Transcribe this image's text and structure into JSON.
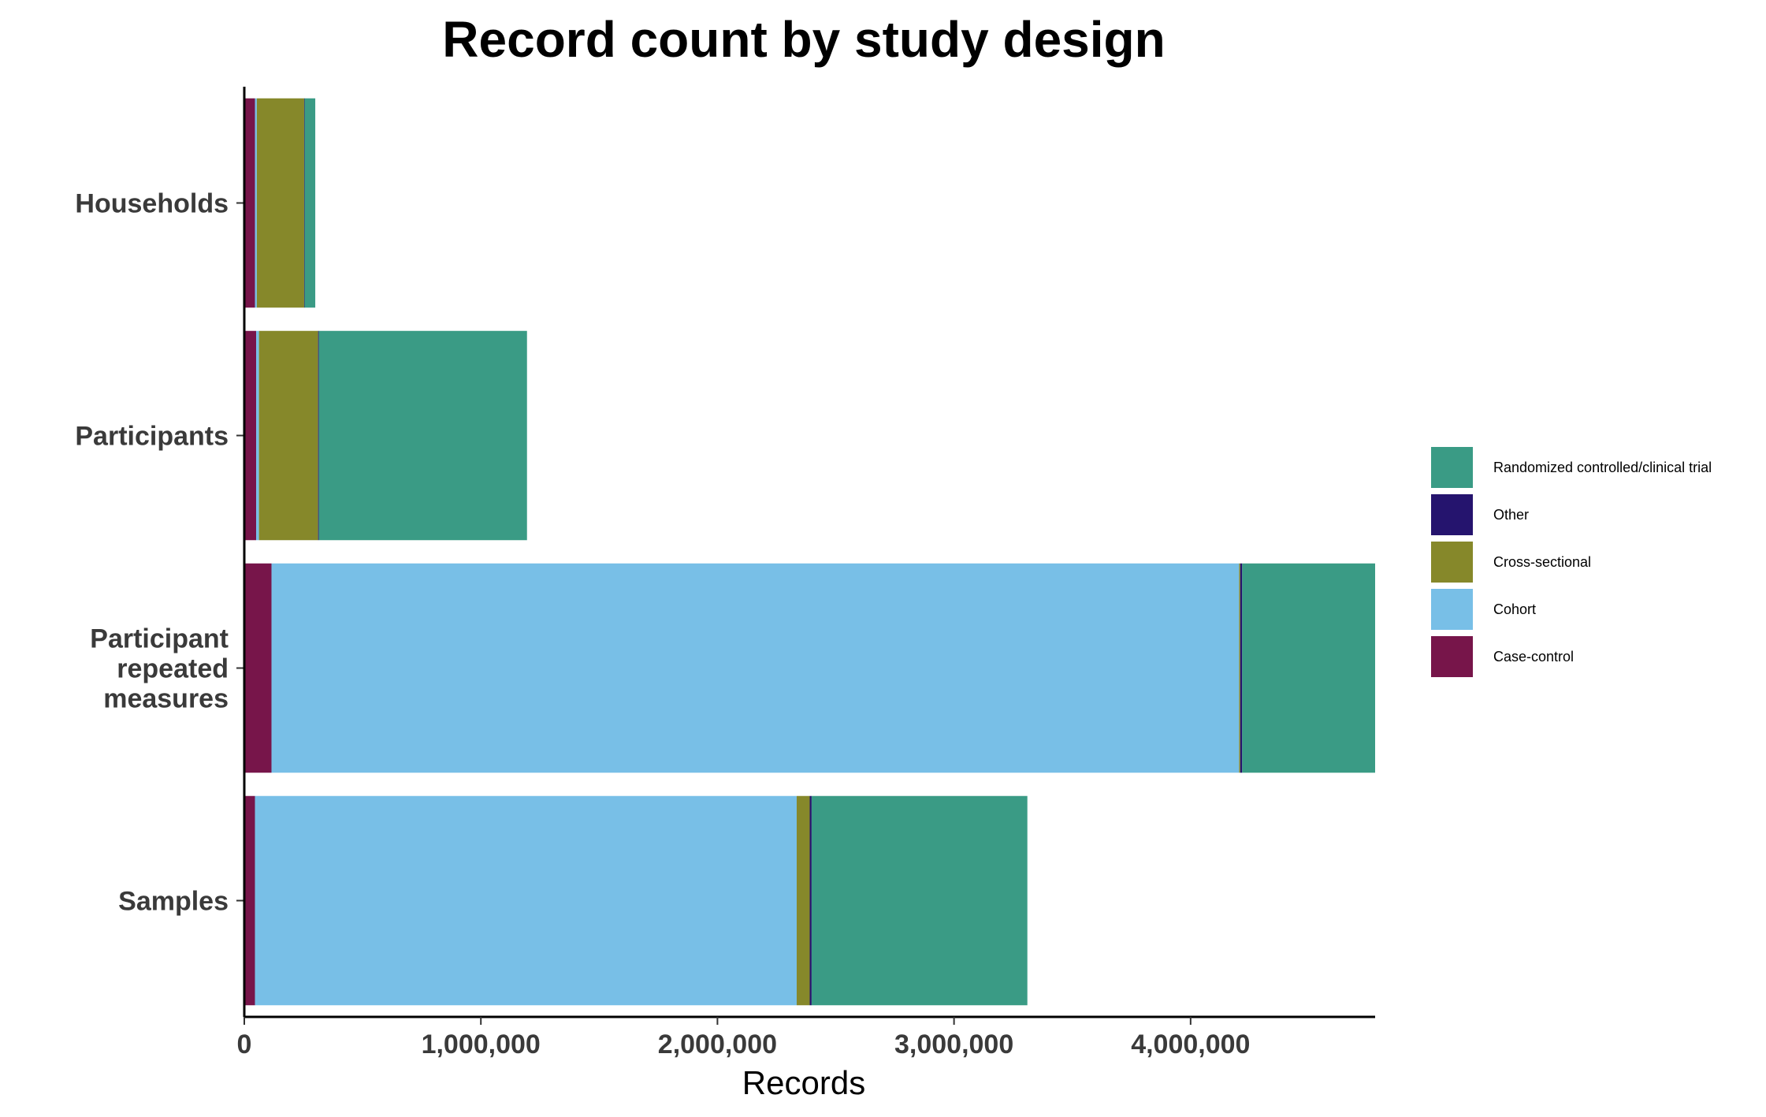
{
  "chart_data": {
    "type": "bar",
    "orientation": "horizontal",
    "stacked": true,
    "title": "Record count by study design",
    "xlabel": "Records",
    "ylabel": "",
    "xlim": [
      0,
      4780000
    ],
    "xticks": [
      0,
      1000000,
      2000000,
      3000000,
      4000000
    ],
    "xtick_labels": [
      "0",
      "1,000,000",
      "2,000,000",
      "3,000,000",
      "4,000,000"
    ],
    "categories": [
      [
        "Households"
      ],
      [
        "Participants"
      ],
      [
        "Participant",
        "repeated",
        "measures"
      ],
      [
        "Samples"
      ]
    ],
    "series": [
      {
        "name": "Case-control",
        "color": "#77154A",
        "values": [
          45000,
          50000,
          115000,
          45000
        ]
      },
      {
        "name": "Cohort",
        "color": "#78BFE7",
        "values": [
          8000,
          12000,
          4090000,
          2290000
        ]
      },
      {
        "name": "Cross-sectional",
        "color": "#86882A",
        "values": [
          200000,
          250000,
          5000,
          55000
        ]
      },
      {
        "name": "Other",
        "color": "#25146E",
        "values": [
          2000,
          3000,
          8000,
          8000
        ]
      },
      {
        "name": "Randomized controlled/clinical trial",
        "color": "#3A9B85",
        "values": [
          45000,
          880000,
          562000,
          912000
        ]
      }
    ],
    "legend_order": [
      "Randomized controlled/clinical trial",
      "Other",
      "Cross-sectional",
      "Cohort",
      "Case-control"
    ],
    "legend_position": "right",
    "grid": false
  }
}
